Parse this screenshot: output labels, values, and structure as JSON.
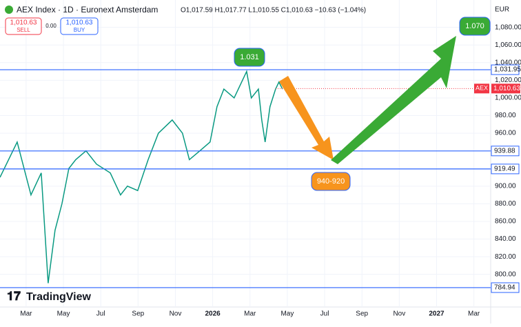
{
  "chart_data": {
    "type": "line",
    "title": "AEX Index · 1D · Euronext Amsterdam",
    "ohlc_text": "O1,017.59 H1,017.77 L1,010.55 C1,010.63 −10.63 (−1.04%)",
    "sell": {
      "price": "1,010.63",
      "label": "SELL"
    },
    "spread": "0.00",
    "buy": {
      "price": "1,010.63",
      "label": "BUY"
    },
    "currency": "EUR",
    "brand": "TradingView",
    "x": [
      0.6,
      1.52,
      2.26,
      2.81,
      3.18,
      3.55,
      3.92,
      4.29,
      4.66,
      5.21,
      5.77,
      6.51,
      7.06,
      7.43,
      7.98,
      8.54,
      9.09,
      9.83,
      10.38,
      10.75,
      11.31,
      11.86,
      12.23,
      12.6,
      13.15,
      13.82,
      14.07,
      14.45,
      14.63,
      14.81,
      15.07,
      15.37,
      15.55,
      15.74
    ],
    "series": [
      {
        "name": "AEX",
        "color": "#089981",
        "values": [
          910,
          950,
          890,
          915,
          790,
          850,
          880,
          920,
          930,
          940,
          925,
          915,
          890,
          900,
          895,
          930,
          960,
          975,
          960,
          930,
          940,
          950,
          990,
          1010,
          1000,
          1030,
          1000,
          1010,
          975,
          950,
          990,
          1010,
          1018,
          1010
        ]
      }
    ],
    "xlim": [
      0.6,
      26.9
    ],
    "xticks": [
      {
        "value": 2,
        "label": "Mar"
      },
      {
        "value": 4,
        "label": "May"
      },
      {
        "value": 6,
        "label": "Jul"
      },
      {
        "value": 8,
        "label": "Sep"
      },
      {
        "value": 10,
        "label": "Nov"
      },
      {
        "value": 12,
        "label": "2026"
      },
      {
        "value": 14,
        "label": "Mar"
      },
      {
        "value": 16,
        "label": "May"
      },
      {
        "value": 18,
        "label": "Jul"
      },
      {
        "value": 20,
        "label": "Sep"
      },
      {
        "value": 22,
        "label": "Nov"
      },
      {
        "value": 24,
        "label": "2027"
      },
      {
        "value": 26,
        "label": "Mar"
      }
    ],
    "ylim": [
      763,
      1111
    ],
    "yticks": [
      {
        "value": 1080,
        "label": "1,080.00"
      },
      {
        "value": 1060,
        "label": "1,060.00"
      },
      {
        "value": 1040,
        "label": "1,040.00"
      },
      {
        "value": 1020,
        "label": "1,020.00"
      },
      {
        "value": 1000,
        "label": "1,000.00"
      },
      {
        "value": 980,
        "label": "980.00"
      },
      {
        "value": 960,
        "label": "960.00"
      },
      {
        "value": 900,
        "label": "900.00"
      },
      {
        "value": 880,
        "label": "880.00"
      },
      {
        "value": 860,
        "label": "860.00"
      },
      {
        "value": 840,
        "label": "840.00"
      },
      {
        "value": 820,
        "label": "820.00"
      },
      {
        "value": 800,
        "label": "800.00"
      }
    ],
    "grid": true,
    "levels": [
      {
        "value": 1031.95,
        "label": "1,031.95",
        "color": "#2962ff"
      },
      {
        "value": 939.88,
        "label": "939.88",
        "color": "#2962ff"
      },
      {
        "value": 919.49,
        "label": "919.49",
        "color": "#2962ff"
      },
      {
        "value": 784.94,
        "label": "784.94",
        "color": "#2962ff"
      }
    ],
    "current": {
      "value": 1010.63,
      "label": "1,010.63",
      "name": "AEX",
      "color": "#f23645"
    },
    "annotations": [
      "1.031",
      "940-920",
      "1.070"
    ]
  }
}
